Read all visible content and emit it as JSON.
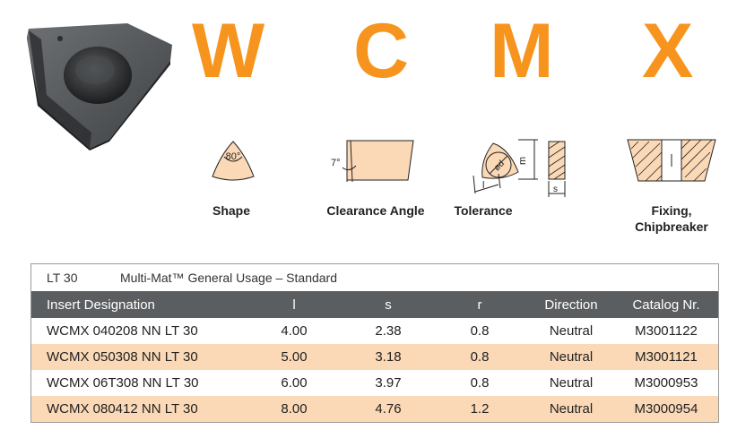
{
  "header": {
    "letters": [
      "W",
      "C",
      "M",
      "X"
    ]
  },
  "diagrams": {
    "shape_angle": "80°",
    "clearance_angle": "7°",
    "tolerance_d": "ød",
    "tolerance_m": "m",
    "tolerance_l": "l",
    "tolerance_s": "s"
  },
  "captions": {
    "shape": "Shape",
    "clearance": "Clearance Angle",
    "tolerance": "Tolerance",
    "fixing_line1": "Fixing,",
    "fixing_line2": "Chipbreaker"
  },
  "table": {
    "code": "LT 30",
    "title": "Multi-Mat™ General Usage – Standard",
    "columns": [
      "Insert Designation",
      "l",
      "s",
      "r",
      "Direction",
      "Catalog Nr."
    ],
    "rows": [
      [
        "WCMX 040208 NN LT 30",
        "4.00",
        "2.38",
        "0.8",
        "Neutral",
        "M3001122"
      ],
      [
        "WCMX 050308 NN LT 30",
        "5.00",
        "3.18",
        "0.8",
        "Neutral",
        "M3001121"
      ],
      [
        "WCMX 06T308 NN LT 30",
        "6.00",
        "3.97",
        "0.8",
        "Neutral",
        "M3000953"
      ],
      [
        "WCMX 080412 NN LT 30",
        "8.00",
        "4.76",
        "1.2",
        "Neutral",
        "M3000954"
      ]
    ]
  }
}
